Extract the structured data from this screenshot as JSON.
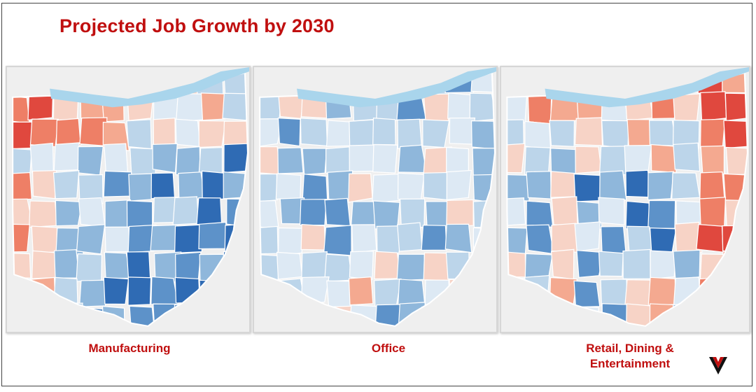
{
  "title": "Projected Job Growth by 2030",
  "maps": [
    {
      "caption": "Manufacturing"
    },
    {
      "caption": "Office"
    },
    {
      "caption": "Retail, Dining &\nEntertainment"
    }
  ],
  "colors": {
    "title": "#c00f0f",
    "lake": "#a9d5ec",
    "scale": [
      "#2f6bb4",
      "#5d92c9",
      "#8fb7db",
      "#bcd5ea",
      "#dde9f4",
      "#f7d3c6",
      "#f4a990",
      "#ee7f66",
      "#e0483e"
    ]
  },
  "logo_icon": "v-chevron-logo-icon"
}
